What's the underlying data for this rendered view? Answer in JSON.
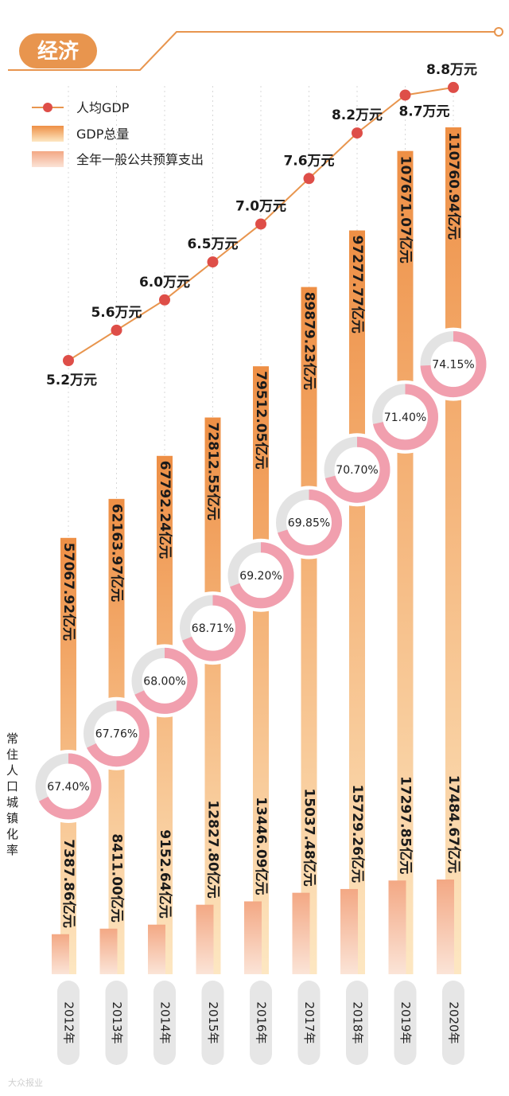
{
  "section_title": "经济",
  "legend": {
    "per_capita": "人均GDP",
    "gdp_total": "GDP总量",
    "budget": "全年一般公共预算支出"
  },
  "side_label": "常住人口城镇化率",
  "watermark": "大众报业",
  "colors": {
    "accent": "#e8954e",
    "gdp_top": "#ee8f45",
    "gdp_bottom": "#fde7c2",
    "budget_top": "#f3a884",
    "budget_bottom": "#fbe4d7",
    "dot": "#de4e48",
    "ring_fill": "#f19fae",
    "ring_rest": "#e3e3e3",
    "year_pill": "#e6e6e6"
  },
  "chart_data": {
    "type": "bar",
    "title": "经济",
    "categories": [
      "2012年",
      "2013年",
      "2014年",
      "2015年",
      "2016年",
      "2017年",
      "2018年",
      "2019年",
      "2020年"
    ],
    "series": [
      {
        "name": "GDP总量",
        "unit": "亿元",
        "values": [
          57067.92,
          62163.97,
          67792.24,
          72812.55,
          79512.05,
          89879.23,
          97277.77,
          107671.07,
          110760.94
        ],
        "labels": [
          "57067.92亿元",
          "62163.97亿元",
          "67792.24亿元",
          "72812.55亿元",
          "79512.05亿元",
          "89879.23亿元",
          "97277.77亿元",
          "107671.07亿元",
          "110760.94亿元"
        ]
      },
      {
        "name": "全年一般公共预算支出",
        "unit": "亿元",
        "values": [
          7387.86,
          8411.0,
          9152.64,
          12827.8,
          13446.09,
          15037.48,
          15729.26,
          17297.85,
          17484.67
        ],
        "labels": [
          "7387.86亿元",
          "8411.00亿元",
          "9152.64亿元",
          "12827.80亿元",
          "13446.09亿元",
          "15037.48亿元",
          "15729.26亿元",
          "17297.85亿元",
          "17484.67亿元"
        ]
      },
      {
        "name": "人均GDP",
        "type": "line",
        "unit": "万元",
        "values": [
          5.2,
          5.6,
          6.0,
          6.5,
          7.0,
          7.6,
          8.2,
          8.7,
          8.8
        ],
        "labels": [
          "5.2万元",
          "5.6万元",
          "6.0万元",
          "6.5万元",
          "7.0万元",
          "7.6万元",
          "8.2万元",
          "8.7万元",
          "8.8万元"
        ]
      },
      {
        "name": "常住人口城镇化率",
        "type": "donut",
        "unit": "%",
        "values": [
          67.4,
          67.76,
          68.0,
          68.71,
          69.2,
          69.85,
          70.7,
          71.4,
          74.15
        ],
        "labels": [
          "67.40%",
          "67.76%",
          "68.00%",
          "68.71%",
          "69.20%",
          "69.85%",
          "70.70%",
          "71.40%",
          "74.15%"
        ]
      }
    ]
  }
}
